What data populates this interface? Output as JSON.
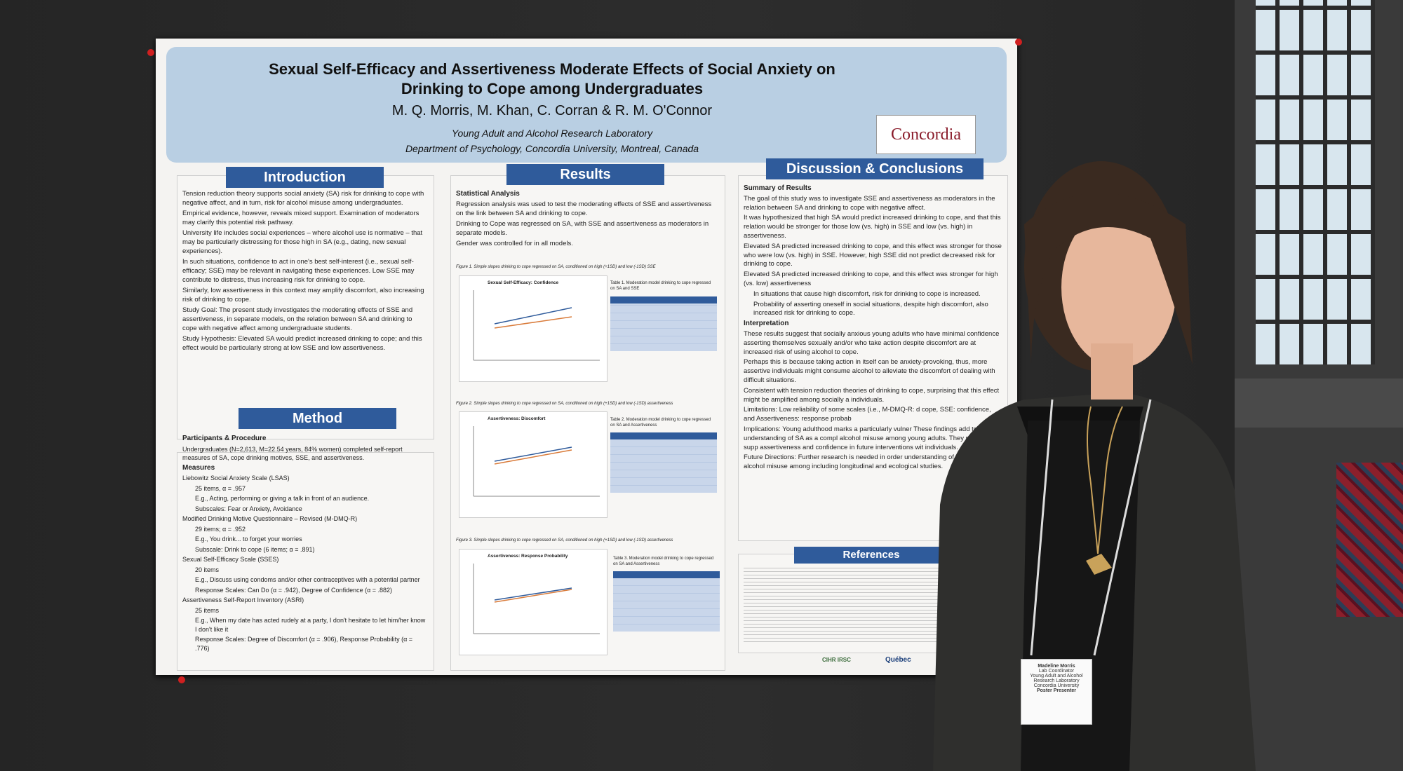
{
  "poster": {
    "title": "Sexual Self-Efficacy and Assertiveness Moderate Effects of Social Anxiety on Drinking to Cope among Undergraduates",
    "authors": "M. Q. Morris, M. Khan, C. Corran & R. M. O'Connor",
    "lab": "Young Adult and Alcohol Research Laboratory",
    "department": "Department of Psychology, Concordia University, Montreal, Canada",
    "logo_text": "Concordia",
    "sections": {
      "introduction": "Introduction",
      "method": "Method",
      "results": "Results",
      "discussion": "Discussion & Conclusions",
      "references": "References"
    },
    "intro_bullets": [
      "Tension reduction theory supports social anxiety (SA) risk for drinking to cope with negative affect, and in turn, risk for alcohol misuse among undergraduates.",
      "Empirical evidence, however, reveals mixed support. Examination of moderators may clarify this potential risk pathway.",
      "University life includes social experiences – where alcohol use is normative – that may be particularly distressing for those high in SA (e.g., dating, new sexual experiences).",
      "In such situations, confidence to act in one's best self-interest (i.e., sexual self-efficacy; SSE) may be relevant in navigating these experiences. Low SSE may contribute to distress, thus increasing risk for drinking to cope.",
      "Similarly, low assertiveness in this context may amplify discomfort, also increasing risk of drinking to cope.",
      "Study Goal: The present study investigates the moderating effects of SSE and assertiveness, in separate models, on the relation between SA and drinking to cope with negative affect among undergraduate students.",
      "Study Hypothesis: Elevated SA would predict increased drinking to cope; and this effect would be particularly strong at low SSE and low assertiveness."
    ],
    "method_heading": "Participants & Procedure",
    "method_lines": [
      "Undergraduates (N=2,613, M=22.54 years, 84% women) completed self-report measures of SA, cope drinking motives, SSE, and assertiveness.",
      "Measures",
      "Liebowitz Social Anxiety Scale (LSAS)",
      "25 items, α = .957",
      "E.g., Acting, performing or giving a talk in front of an audience.",
      "Subscales: Fear or Anxiety, Avoidance",
      "Modified Drinking Motive Questionnaire – Revised (M-DMQ-R)",
      "29 items; α = .952",
      "E.g., You drink... to forget your worries",
      "Subscale: Drink to cope (6 items; α = .891)",
      "Sexual Self-Efficacy Scale (SSES)",
      "20 items",
      "E.g., Discuss using condoms and/or other contraceptives with a potential partner",
      "Response Scales: Can Do (α = .942), Degree of Confidence (α = .882)",
      "Assertiveness Self-Report Inventory (ASRI)",
      "25 items",
      "E.g., When my date has acted rudely at a party, I don't hesitate to let him/her know I don't like it",
      "Response Scales: Degree of Discomfort (α = .906), Response Probability (α = .776)"
    ],
    "results_heading": "Statistical Analysis",
    "results_bullets": [
      "Regression analysis was used to test the moderating effects of SSE and assertiveness on the link between SA and drinking to cope.",
      "Drinking to Cope was regressed on SA, with SSE and assertiveness as moderators in separate models.",
      "Gender was controlled for in all models."
    ],
    "figures": [
      {
        "caption": "Figure 1. Simple slopes drinking to cope regressed on SA, conditioned on high (+1SD) and low (-1SD) SSE",
        "title": "Sexual Self-Efficacy: Confidence",
        "table_caption": "Table 1. Moderation model drinking to cope regressed on SA and SSE"
      },
      {
        "caption": "Figure 2. Simple slopes drinking to cope regressed on SA, conditioned on high (+1SD) and low (-1SD) assertiveness",
        "title": "Assertiveness: Discomfort",
        "table_caption": "Table 2. Moderation model drinking to cope regressed on SA and Assertiveness"
      },
      {
        "caption": "Figure 3. Simple slopes drinking to cope regressed on SA, conditioned on high (+1SD) and low (-1SD) assertiveness",
        "title": "Assertiveness: Response Probability",
        "table_caption": "Table 3. Moderation model drinking to cope regressed on SA and Assertiveness"
      }
    ],
    "discussion_heading": "Summary of Results",
    "discussion_bullets": [
      "The goal of this study was to investigate SSE and assertiveness as moderators in the relation between SA and drinking to cope with negative affect.",
      "It was hypothesized that high SA would predict increased drinking to cope, and that this relation would be stronger for those low (vs. high) in SSE and low (vs. high) in assertiveness.",
      "Elevated SA predicted increased drinking to cope, and this effect was stronger for those who were low (vs. high) in SSE. However, high SSE did not predict decreased risk for drinking to cope.",
      "Elevated SA predicted increased drinking to cope, and this effect was stronger for high (vs. low) assertiveness",
      "In situations that cause high discomfort, risk for drinking to cope is increased.",
      "Probability of asserting oneself in social situations, despite high discomfort, also increased risk for drinking to cope."
    ],
    "interpretation_heading": "Interpretation",
    "interpretation_bullets": [
      "These results suggest that socially anxious young adults who have minimal confidence asserting themselves sexually and/or who take action despite discomfort are at increased risk of using alcohol to cope.",
      "Perhaps this is because taking action in itself can be anxiety-provoking, thus, more assertive individuals might consume alcohol to alleviate the discomfort of dealing with difficult situations.",
      "Consistent with tension reduction theories of drinking to cope, surprising that this effect might be amplified among socially a individuals.",
      "Limitations: Low reliability of some scales (i.e., M-DMQ-R: d cope, SSE: confidence, and Assertiveness: response probab",
      "Implications: Young adulthood marks a particularly vulner These findings add to our understanding of SA as a compl alcohol misuse among young adults. They may also supp assertiveness and confidence in future interventions wit individuals.",
      "Future Directions: Further research is needed in order understanding of risk factors for alcohol misuse among including longitudinal and ecological studies."
    ],
    "funders": [
      "CIHR IRSC",
      "Québec"
    ]
  },
  "badge": {
    "name": "Madeline Morris",
    "role": "Lab Coordinator",
    "lab": "Young Adult and Alcohol Research Laboratory",
    "org": "Concordia University",
    "tag": "Poster Presenter"
  }
}
